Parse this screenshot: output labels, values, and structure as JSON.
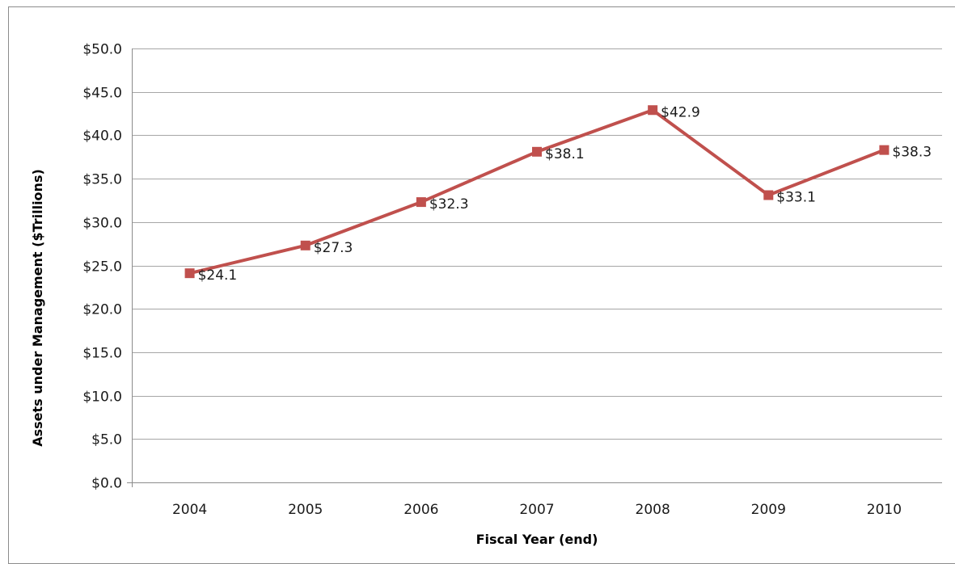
{
  "chart_data": {
    "type": "line",
    "title": "",
    "xlabel": "Fiscal Year (end)",
    "ylabel": "Assets under Management ($Trillions)",
    "categories": [
      "2004",
      "2005",
      "2006",
      "2007",
      "2008",
      "2009",
      "2010"
    ],
    "series": [
      {
        "values": [
          24.1,
          27.3,
          32.3,
          38.1,
          42.9,
          33.1,
          38.3
        ],
        "labels": [
          "$24.1",
          "$27.3",
          "$32.3",
          "$38.1",
          "$42.9",
          "$33.1",
          "$38.3"
        ],
        "color": "#c0504d"
      }
    ],
    "ylim": [
      0,
      50
    ],
    "ytick_values": [
      0,
      5,
      10,
      15,
      20,
      25,
      30,
      35,
      40,
      45,
      50
    ],
    "yticks": [
      "$0.0",
      "$5.0",
      "$10.0",
      "$15.0",
      "$20.0",
      "$25.0",
      "$30.0",
      "$35.0",
      "$40.0",
      "$45.0",
      "$50.0"
    ],
    "grid": true,
    "legend": "none",
    "gridline_color": "#a6a6a6"
  }
}
